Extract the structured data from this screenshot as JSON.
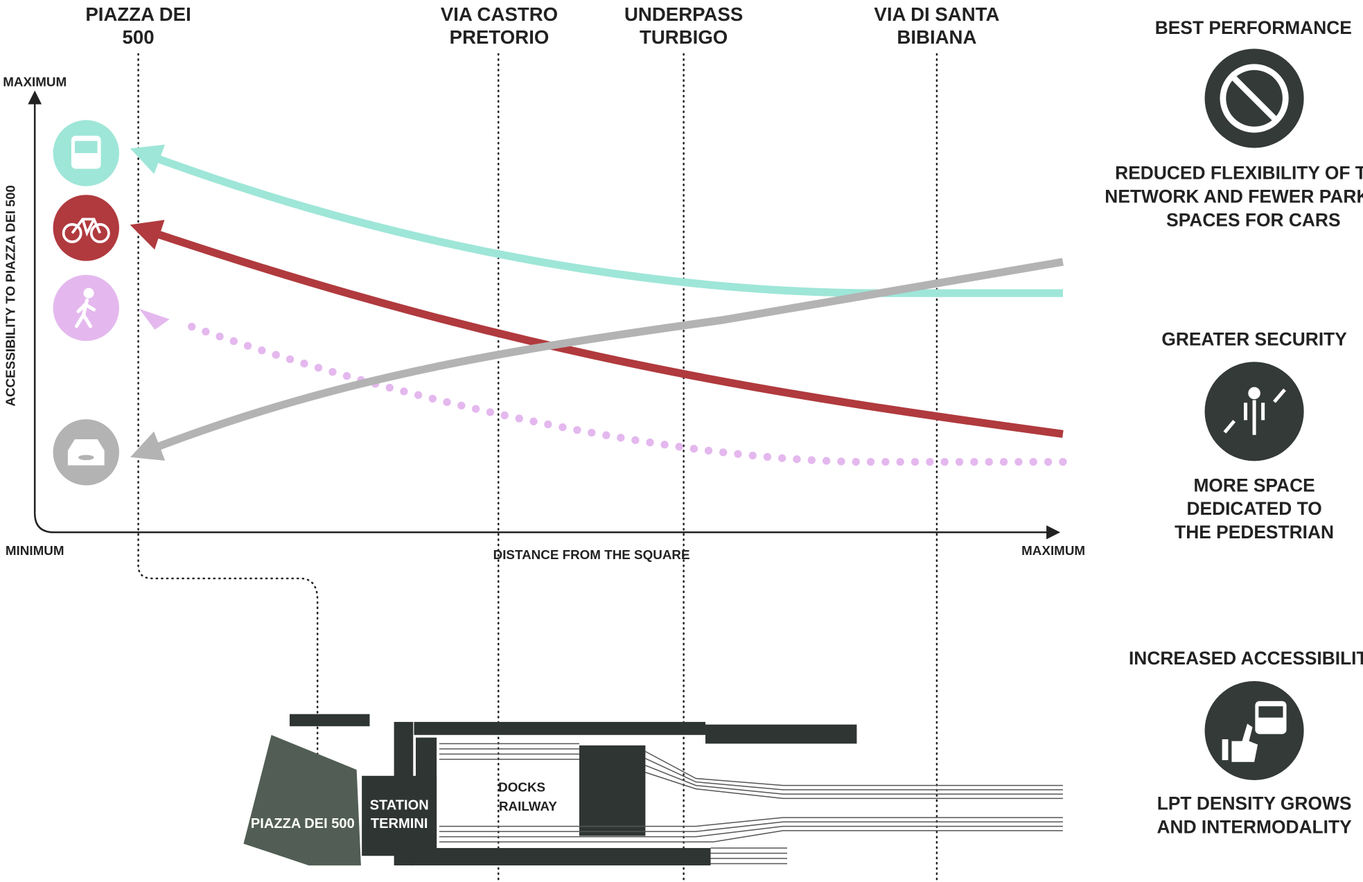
{
  "locations": [
    [
      "PIAZZA DEI",
      "500"
    ],
    [
      "VIA CASTRO",
      "PRETORIO"
    ],
    [
      "UNDERPASS",
      "TURBIGO"
    ],
    [
      "VIA DI SANTA",
      "BIBIANA"
    ]
  ],
  "axes": {
    "y_max": "MAXIMUM",
    "y_label": "ACCESSIBILITY TO  PIAZZA DEI 500",
    "x_min": "MINIMUM",
    "x_label": "DISTANCE FROM THE SQUARE",
    "x_max": "MAXIMUM"
  },
  "benefits": [
    {
      "title": "BEST PERFORMANCE",
      "text": [
        "REDUCED FLEXIBILITY OF THE",
        "NETWORK AND FEWER PARKING",
        "SPACES FOR CARS"
      ]
    },
    {
      "title": "GREATER SECURITY",
      "text": [
        "MORE SPACE",
        "DEDICATED TO",
        "THE PEDESTRIAN"
      ]
    },
    {
      "title": "INCREASED ACCESSIBILITY",
      "text": [
        "LPT DENSITY GROWS",
        "AND INTERMODALITY"
      ]
    }
  ],
  "map": {
    "square": "PIAZZA DEI 500",
    "station": [
      "STATION",
      "TERMINI"
    ],
    "railway": [
      "DOCKS",
      "RAILWAY"
    ]
  }
}
